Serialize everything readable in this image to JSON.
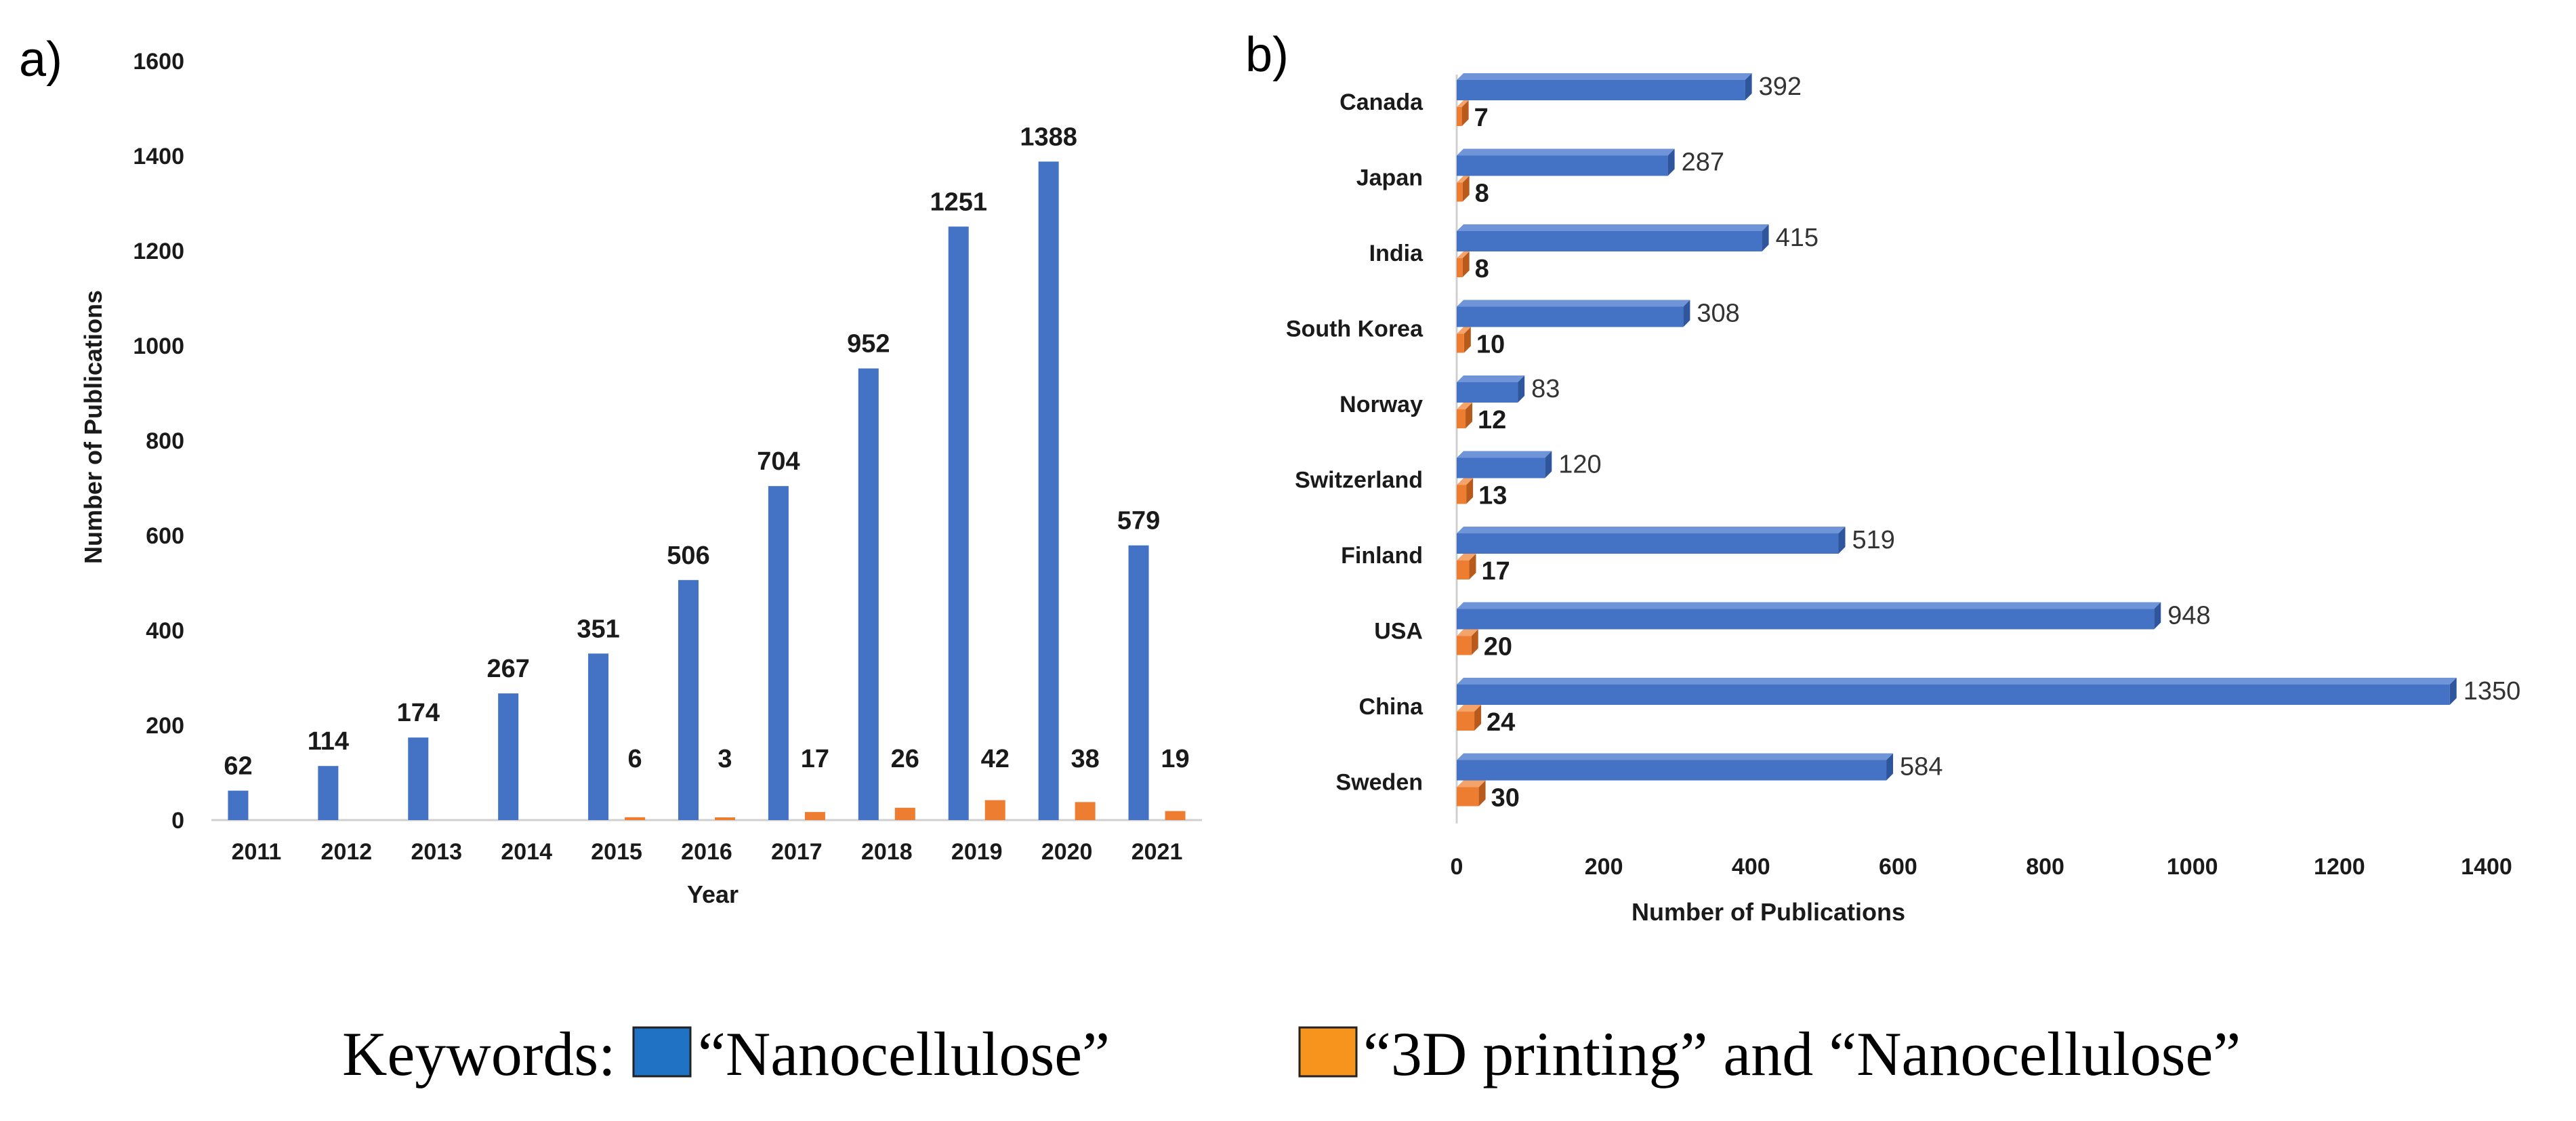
{
  "colors": {
    "series_primary": "#4472C4",
    "series_primary_side": "#2f569c",
    "series_secondary": "#ED7D31",
    "series_secondary_side": "#b85a1c",
    "legend_primary": "#1f72c4",
    "legend_secondary": "#f7941d"
  },
  "chart_data": [
    {
      "panel": "a)",
      "type": "bar",
      "orientation": "vertical",
      "categories": [
        "2011",
        "2012",
        "2013",
        "2014",
        "2015",
        "2016",
        "2017",
        "2018",
        "2019",
        "2020",
        "2021"
      ],
      "series": [
        {
          "name": "“Nanocellulose”",
          "values": [
            62,
            114,
            174,
            267,
            351,
            506,
            704,
            952,
            1251,
            1388,
            579
          ]
        },
        {
          "name": "“3D printing” and “Nanocellulose”",
          "values": [
            0,
            0,
            0,
            0,
            6,
            3,
            17,
            26,
            42,
            38,
            19
          ]
        }
      ],
      "secondary_labels": [
        "",
        "",
        "",
        "",
        "6",
        "3",
        "17",
        "26",
        "42",
        "38",
        "19"
      ],
      "xlabel": "Year",
      "ylabel": "Number of Publications",
      "ylim": [
        0,
        1600
      ],
      "yticks": [
        "0",
        "200",
        "400",
        "600",
        "800",
        "1000",
        "1200",
        "1400",
        "1600"
      ]
    },
    {
      "panel": "b)",
      "type": "bar",
      "orientation": "horizontal",
      "categories": [
        "Canada",
        "Japan",
        "India",
        "South Korea",
        "Norway",
        "Switzerland",
        "Finland",
        "USA",
        "China",
        "Sweden"
      ],
      "series": [
        {
          "name": "“Nanocellulose”",
          "values": [
            392,
            287,
            415,
            308,
            83,
            120,
            519,
            948,
            1350,
            584
          ]
        },
        {
          "name": "“3D printing” and “Nanocellulose”",
          "values": [
            7,
            8,
            8,
            10,
            12,
            13,
            17,
            20,
            24,
            30
          ]
        }
      ],
      "xlabel": "Number of Publications",
      "ylabel": "",
      "xlim": [
        0,
        1400
      ],
      "xticks": [
        "0",
        "200",
        "400",
        "600",
        "800",
        "1000",
        "1200",
        "1400"
      ]
    }
  ],
  "legend": {
    "prefix": "Keywords:",
    "primary_label": "“Nanocellulose”",
    "secondary_label": "“3D printing” and “Nanocellulose”"
  }
}
